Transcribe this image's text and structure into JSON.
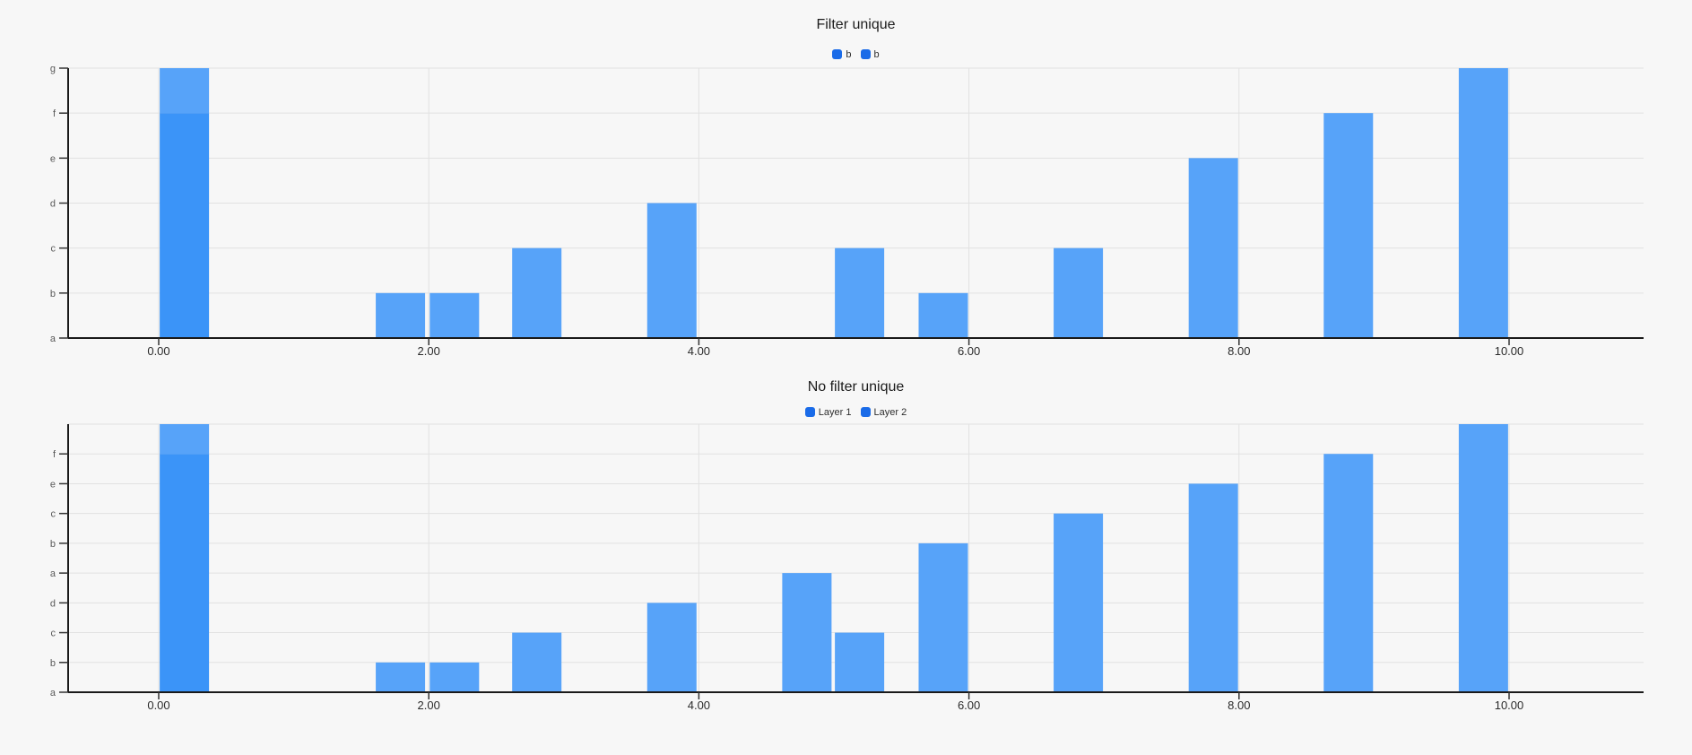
{
  "page": {
    "background": "#F7F7F7"
  },
  "colors": {
    "bar": "#57A3F9",
    "bar_overlap": "#3B94F8",
    "legend_swatch": "#1A6BE8",
    "gridline": "#E2E2E2",
    "axis": "#1A1A1A",
    "tick": "#333333",
    "x_tick_label": "#2B2B2B",
    "y_tick_label": "#595959"
  },
  "chart_data": [
    {
      "type": "bar",
      "title": "Filter unique",
      "legend": [
        {
          "label": "b"
        },
        {
          "label": "b"
        }
      ],
      "legend_position": "top-center",
      "x_axis": {
        "tick_values": [
          0,
          2,
          4,
          6,
          8,
          10
        ],
        "tick_labels": [
          "0.00",
          "2.00",
          "4.00",
          "6.00",
          "8.00",
          "10.00"
        ],
        "range": [
          -0.67,
          11.0
        ],
        "grid": true
      },
      "y_axis": {
        "categories": [
          "a",
          "b",
          "c",
          "d",
          "e",
          "f",
          "g"
        ],
        "grid": true
      },
      "bar_width_units": 0.366,
      "bars": [
        {
          "x": 0.19,
          "top": "g",
          "top_level": 6,
          "overlap_top": "f",
          "overlap_level": 5
        },
        {
          "x": 1.79,
          "top": "b",
          "top_level": 1
        },
        {
          "x": 2.19,
          "top": "b",
          "top_level": 1
        },
        {
          "x": 2.8,
          "top": "c",
          "top_level": 2
        },
        {
          "x": 3.8,
          "top": "d",
          "top_level": 3
        },
        {
          "x": 5.19,
          "top": "c",
          "top_level": 2
        },
        {
          "x": 5.81,
          "top": "b",
          "top_level": 1
        },
        {
          "x": 6.81,
          "top": "c",
          "top_level": 2
        },
        {
          "x": 7.81,
          "top": "e",
          "top_level": 4
        },
        {
          "x": 8.81,
          "top": "f",
          "top_level": 5
        },
        {
          "x": 9.81,
          "top": "g",
          "top_level": 6
        }
      ]
    },
    {
      "type": "bar",
      "title": "No filter unique",
      "legend": [
        {
          "label": "Layer 1"
        },
        {
          "label": "Layer 2"
        }
      ],
      "legend_position": "top-center",
      "x_axis": {
        "tick_values": [
          0,
          2,
          4,
          6,
          8,
          10
        ],
        "tick_labels": [
          "0.00",
          "2.00",
          "4.00",
          "6.00",
          "8.00",
          "10.00"
        ],
        "range": [
          -0.67,
          11.0
        ],
        "grid": true
      },
      "y_axis": {
        "categories": [
          "a",
          "b",
          "c",
          "d",
          "a",
          "b",
          "c",
          "e",
          "f",
          ""
        ],
        "grid": true
      },
      "bar_width_units": 0.366,
      "bars": [
        {
          "x": 0.19,
          "top": "",
          "top_level": 9,
          "overlap_top": "f",
          "overlap_level": 8
        },
        {
          "x": 1.79,
          "top": "b",
          "top_level": 1
        },
        {
          "x": 2.19,
          "top": "b",
          "top_level": 1
        },
        {
          "x": 2.8,
          "top": "c",
          "top_level": 2
        },
        {
          "x": 3.8,
          "top": "d",
          "top_level": 3
        },
        {
          "x": 4.8,
          "top": "a",
          "top_level": 4
        },
        {
          "x": 5.19,
          "top": "c",
          "top_level": 2
        },
        {
          "x": 5.81,
          "top": "b",
          "top_level": 5
        },
        {
          "x": 6.81,
          "top": "c",
          "top_level": 6
        },
        {
          "x": 7.81,
          "top": "e",
          "top_level": 7
        },
        {
          "x": 8.81,
          "top": "f",
          "top_level": 8
        },
        {
          "x": 9.81,
          "top": "",
          "top_level": 9
        }
      ]
    }
  ]
}
